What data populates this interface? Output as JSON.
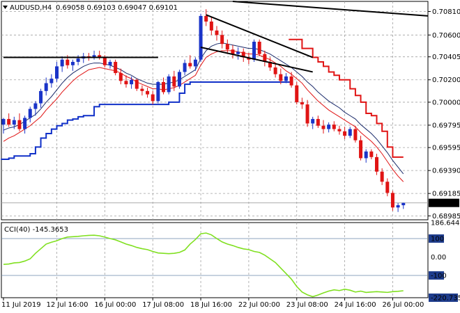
{
  "header": {
    "symbol_label": "AUDUSD,H4",
    "ohlc_label": "0.69058 0.69103 0.69047 0.69101"
  },
  "colors": {
    "bull": "#1a34c8",
    "bear": "#e01414",
    "ma_fast": "#e01414",
    "ma_slow": "#1a2a6a",
    "channel_upper": "#e01414",
    "channel_lower": "#1030c8",
    "trend": "#000000",
    "cci": "#80e020",
    "grid": "#a0a0a0",
    "price_tag_bg": "#000000",
    "price_tag_text": "#ffffff"
  },
  "price_axis": {
    "ticks": [
      0.7081,
      0.706,
      0.70405,
      0.702,
      0.7,
      0.69795,
      0.69595,
      0.6939,
      0.69185,
      0.68985
    ],
    "tick_labels": [
      "0.70810",
      "0.70600",
      "0.70405",
      "0.70200",
      "0.70000",
      "0.69795",
      "0.69595",
      "0.69390",
      "0.69185",
      "0.68985"
    ],
    "range": [
      0.6895,
      0.709
    ],
    "current_price_label": "0.69101",
    "current_price": 0.69101
  },
  "time_axis": {
    "labels": [
      "11 Jul 2019",
      "12 Jul 16:00",
      "16 Jul 00:00",
      "17 Jul 08:00",
      "18 Jul 16:00",
      "22 Jul 00:00",
      "23 Jul 08:00",
      "24 Jul 16:00",
      "26 Jul 00:00"
    ],
    "label_bar_index": [
      0,
      10,
      19,
      28,
      37,
      46,
      55,
      64,
      73
    ]
  },
  "cci_panel": {
    "title": "CCI(40) -145.3653",
    "scale_labels": [
      "186.6442",
      "100",
      "0.00",
      "-100",
      "-220.735"
    ],
    "scale_values": [
      186.6442,
      100,
      0,
      -100,
      -220.735
    ],
    "level_lines": [
      100,
      -100
    ]
  },
  "chart_data": {
    "type": "candlestick",
    "bars": [
      [
        0.698,
        0.6986,
        0.6972,
        0.6985
      ],
      [
        0.6985,
        0.699,
        0.6978,
        0.698
      ],
      [
        0.698,
        0.6987,
        0.6976,
        0.6984
      ],
      [
        0.6984,
        0.699,
        0.6974,
        0.6976
      ],
      [
        0.6976,
        0.6988,
        0.6972,
        0.6986
      ],
      [
        0.6986,
        0.6996,
        0.6982,
        0.6994
      ],
      [
        0.6994,
        0.7001,
        0.6988,
        0.6999
      ],
      [
        0.6999,
        0.7012,
        0.6995,
        0.701
      ],
      [
        0.701,
        0.7022,
        0.7006,
        0.7017
      ],
      [
        0.7017,
        0.7025,
        0.7013,
        0.7021
      ],
      [
        0.7021,
        0.7036,
        0.7018,
        0.7032
      ],
      [
        0.7032,
        0.7041,
        0.7027,
        0.7038
      ],
      [
        0.7038,
        0.7042,
        0.703,
        0.7033
      ],
      [
        0.7033,
        0.7038,
        0.7028,
        0.7036
      ],
      [
        0.7036,
        0.7042,
        0.7033,
        0.7039
      ],
      [
        0.7039,
        0.7044,
        0.7035,
        0.7041
      ],
      [
        0.7041,
        0.7044,
        0.7037,
        0.704
      ],
      [
        0.704,
        0.7046,
        0.7038,
        0.7042
      ],
      [
        0.7042,
        0.7046,
        0.7038,
        0.704
      ],
      [
        0.704,
        0.7042,
        0.7031,
        0.7033
      ],
      [
        0.7033,
        0.7038,
        0.703,
        0.7036
      ],
      [
        0.7036,
        0.7038,
        0.7024,
        0.7026
      ],
      [
        0.7026,
        0.703,
        0.7016,
        0.7019
      ],
      [
        0.7019,
        0.7024,
        0.7013,
        0.7016
      ],
      [
        0.7016,
        0.7023,
        0.7012,
        0.702
      ],
      [
        0.702,
        0.7021,
        0.701,
        0.7012
      ],
      [
        0.7012,
        0.7015,
        0.7006,
        0.701
      ],
      [
        0.701,
        0.7013,
        0.7004,
        0.7007
      ],
      [
        0.7007,
        0.701,
        0.6998,
        0.7001
      ],
      [
        0.7001,
        0.7019,
        0.6999,
        0.7018
      ],
      [
        0.7018,
        0.7022,
        0.7007,
        0.7009
      ],
      [
        0.7009,
        0.7025,
        0.7007,
        0.7023
      ],
      [
        0.7023,
        0.7028,
        0.701,
        0.7014
      ],
      [
        0.7014,
        0.7029,
        0.7012,
        0.7027
      ],
      [
        0.7027,
        0.7038,
        0.7024,
        0.7035
      ],
      [
        0.7035,
        0.7042,
        0.703,
        0.7032
      ],
      [
        0.7032,
        0.704,
        0.7028,
        0.7038
      ],
      [
        0.7038,
        0.7079,
        0.7036,
        0.7077
      ],
      [
        0.7077,
        0.7083,
        0.7068,
        0.7072
      ],
      [
        0.7072,
        0.7076,
        0.706,
        0.7064
      ],
      [
        0.7064,
        0.7068,
        0.7055,
        0.706
      ],
      [
        0.706,
        0.7064,
        0.7048,
        0.7052
      ],
      [
        0.7052,
        0.7056,
        0.7043,
        0.7047
      ],
      [
        0.7047,
        0.7051,
        0.7039,
        0.7043
      ],
      [
        0.7043,
        0.7049,
        0.7038,
        0.7045
      ],
      [
        0.7045,
        0.7048,
        0.7036,
        0.704
      ],
      [
        0.704,
        0.7044,
        0.7034,
        0.7038
      ],
      [
        0.7038,
        0.7056,
        0.7036,
        0.7054
      ],
      [
        0.7054,
        0.7056,
        0.7041,
        0.7043
      ],
      [
        0.7043,
        0.7046,
        0.7032,
        0.7036
      ],
      [
        0.7036,
        0.704,
        0.7028,
        0.7031
      ],
      [
        0.7031,
        0.7034,
        0.7022,
        0.7025
      ],
      [
        0.7025,
        0.703,
        0.7016,
        0.7019
      ],
      [
        0.7019,
        0.7026,
        0.7017,
        0.7023
      ],
      [
        0.7023,
        0.7027,
        0.7013,
        0.7015
      ],
      [
        0.7015,
        0.7018,
        0.6998,
        0.7
      ],
      [
        0.7,
        0.7004,
        0.6994,
        0.6998
      ],
      [
        0.6998,
        0.7002,
        0.6978,
        0.6981
      ],
      [
        0.6981,
        0.6987,
        0.6976,
        0.6985
      ],
      [
        0.6985,
        0.6988,
        0.6977,
        0.6979
      ],
      [
        0.6979,
        0.6984,
        0.6972,
        0.6976
      ],
      [
        0.6976,
        0.6982,
        0.6973,
        0.698
      ],
      [
        0.698,
        0.6983,
        0.6974,
        0.6976
      ],
      [
        0.6976,
        0.6979,
        0.6971,
        0.6974
      ],
      [
        0.6974,
        0.6978,
        0.6967,
        0.697
      ],
      [
        0.697,
        0.6978,
        0.6968,
        0.6976
      ],
      [
        0.6976,
        0.6979,
        0.6964,
        0.6966
      ],
      [
        0.6966,
        0.697,
        0.6948,
        0.695
      ],
      [
        0.695,
        0.6958,
        0.6946,
        0.6956
      ],
      [
        0.6956,
        0.6958,
        0.6949,
        0.6951
      ],
      [
        0.6951,
        0.6954,
        0.6935,
        0.6938
      ],
      [
        0.6938,
        0.6941,
        0.6926,
        0.6929
      ],
      [
        0.6929,
        0.6932,
        0.6916,
        0.6919
      ],
      [
        0.6919,
        0.6921,
        0.6903,
        0.6906
      ],
      [
        0.6906,
        0.691,
        0.6902,
        0.6908
      ],
      [
        0.6908,
        0.69103,
        0.69047,
        0.69101
      ]
    ],
    "ma_fast": [
      0.6965,
      0.6968,
      0.697,
      0.6973,
      0.6976,
      0.6979,
      0.6983,
      0.6987,
      0.6993,
      0.6998,
      0.7003,
      0.7009,
      0.7014,
      0.7019,
      0.7023,
      0.7026,
      0.7029,
      0.703,
      0.7031,
      0.703,
      0.7029,
      0.7028,
      0.7026,
      0.7023,
      0.7021,
      0.7018,
      0.7016,
      0.7014,
      0.7012,
      0.7012,
      0.7011,
      0.7012,
      0.7013,
      0.7015,
      0.7018,
      0.7021,
      0.7024,
      0.7033,
      0.704,
      0.7043,
      0.7045,
      0.7046,
      0.7046,
      0.7046,
      0.7045,
      0.7044,
      0.7043,
      0.7043,
      0.7042,
      0.704,
      0.7038,
      0.7035,
      0.7032,
      0.7028,
      0.7025,
      0.7021,
      0.7017,
      0.7011,
      0.7006,
      0.7001,
      0.6997,
      0.6993,
      0.699,
      0.6987,
      0.6984,
      0.6981,
      0.6978,
      0.6973,
      0.6969,
      0.6965,
      0.696,
      0.6954,
      0.6947,
      0.694,
      0.6934,
      0.6929
    ],
    "ma_slow": [
      0.6975,
      0.6977,
      0.6978,
      0.698,
      0.6983,
      0.6986,
      0.6989,
      0.6994,
      0.7,
      0.7005,
      0.7011,
      0.7017,
      0.7022,
      0.7026,
      0.7029,
      0.7032,
      0.7034,
      0.7035,
      0.7035,
      0.7034,
      0.7033,
      0.7031,
      0.7029,
      0.7026,
      0.7024,
      0.7021,
      0.7019,
      0.7017,
      0.7016,
      0.7016,
      0.7016,
      0.7017,
      0.7018,
      0.702,
      0.7023,
      0.7026,
      0.7029,
      0.7039,
      0.7046,
      0.705,
      0.7052,
      0.7053,
      0.7052,
      0.7051,
      0.705,
      0.7049,
      0.7048,
      0.7048,
      0.7047,
      0.7045,
      0.7043,
      0.704,
      0.7037,
      0.7034,
      0.7031,
      0.7027,
      0.7023,
      0.7018,
      0.7014,
      0.7009,
      0.7005,
      0.7001,
      0.6998,
      0.6995,
      0.6991,
      0.6988,
      0.6985,
      0.698,
      0.6976,
      0.6972,
      0.6967,
      0.6961,
      0.6955,
      0.6948,
      0.6942,
      0.6936
    ],
    "channel_upper": [
      null,
      null,
      null,
      null,
      null,
      null,
      null,
      null,
      null,
      null,
      null,
      null,
      null,
      null,
      null,
      null,
      null,
      null,
      null,
      null,
      null,
      null,
      null,
      null,
      null,
      null,
      null,
      null,
      null,
      null,
      null,
      null,
      null,
      null,
      null,
      null,
      null,
      null,
      null,
      null,
      null,
      null,
      null,
      null,
      null,
      null,
      null,
      null,
      null,
      null,
      null,
      null,
      null,
      null,
      0.7056,
      0.7056,
      0.7048,
      0.7048,
      0.704,
      0.7036,
      0.7032,
      0.7027,
      0.7024,
      0.702,
      0.702,
      0.7012,
      0.7006,
      0.7,
      0.699,
      0.6988,
      0.6981,
      0.6974,
      0.696,
      0.6951,
      0.6951,
      0.6951
    ],
    "channel_lower": [
      0.6949,
      0.695,
      0.6952,
      0.6952,
      0.6952,
      0.6954,
      0.696,
      0.6968,
      0.6972,
      0.6976,
      0.6979,
      0.6981,
      0.6984,
      0.6985,
      0.6987,
      0.6988,
      0.6988,
      0.6996,
      0.6998,
      0.6998,
      0.6998,
      0.6998,
      0.6998,
      0.6998,
      0.6998,
      0.6998,
      0.6998,
      0.6998,
      0.6998,
      0.6998,
      0.6998,
      0.7,
      0.7,
      0.7008,
      0.7016,
      0.7018,
      0.7018,
      0.7018,
      0.7018,
      0.7018,
      0.7018,
      0.7018,
      0.7018,
      0.7018,
      0.7018,
      0.7018,
      0.7018,
      0.7018,
      0.7018,
      0.7018,
      0.7018,
      0.7018,
      0.7018,
      0.7018,
      0.7018,
      null,
      null,
      null,
      null,
      null,
      null,
      null,
      null,
      null,
      null,
      null,
      null,
      null,
      null,
      null,
      null,
      null,
      null,
      null,
      null,
      null
    ],
    "trend_lines": [
      {
        "from": [
          0,
          0.704
        ],
        "to": [
          29,
          0.704
        ]
      },
      {
        "from": [
          43,
          0.709
        ],
        "to": [
          91,
          0.7077
        ]
      },
      {
        "from": [
          38,
          0.7078
        ],
        "to": [
          58,
          0.704
        ]
      },
      {
        "from": [
          37,
          0.7049
        ],
        "to": [
          58,
          0.7027
        ]
      }
    ],
    "cci": [
      -40,
      -38,
      -32,
      -30,
      -22,
      -10,
      20,
      45,
      70,
      80,
      88,
      100,
      108,
      110,
      112,
      115,
      117,
      118,
      115,
      108,
      100,
      93,
      82,
      70,
      62,
      52,
      45,
      40,
      30,
      22,
      20,
      18,
      20,
      25,
      38,
      70,
      95,
      126,
      130,
      120,
      100,
      82,
      70,
      62,
      52,
      44,
      40,
      30,
      25,
      10,
      -10,
      -30,
      -60,
      -90,
      -120,
      -160,
      -190,
      -205,
      -215,
      -206,
      -195,
      -185,
      -178,
      -182,
      -175,
      -180,
      -190,
      -185,
      -192,
      -190,
      -188,
      -190,
      -192,
      -188,
      -186,
      -183
    ],
    "vertical_grid_bar_index": [
      10,
      19,
      28,
      37,
      46,
      55,
      64,
      73
    ]
  }
}
